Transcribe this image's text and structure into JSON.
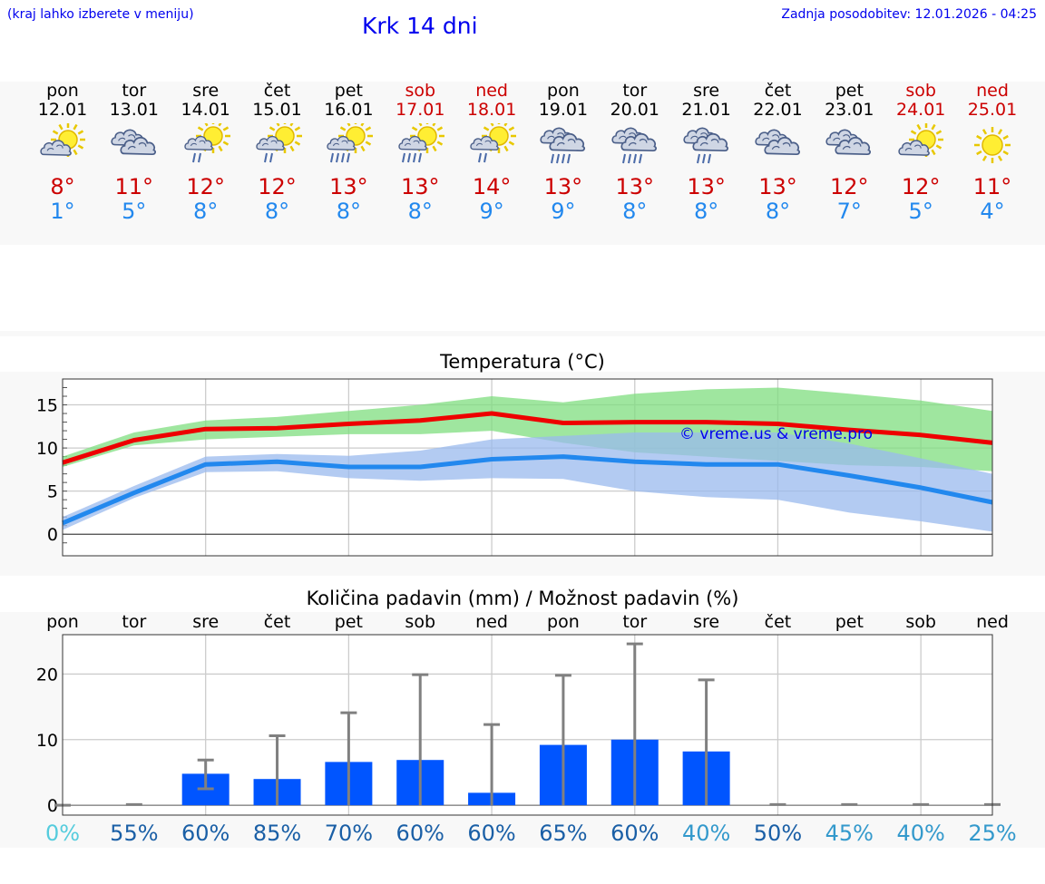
{
  "header": {
    "hint": "(kraj lahko izberete v meniju)",
    "title": "Krk 14 dni",
    "updated": "Zadnja posodobitev: 12.01.2026 - 04:25"
  },
  "days": [
    {
      "name": "pon",
      "date": "12.01",
      "weekend": false,
      "icon": "sun-cloud-icon",
      "max": "8°",
      "min": "1°"
    },
    {
      "name": "tor",
      "date": "13.01",
      "weekend": false,
      "icon": "cloudy-icon",
      "max": "11°",
      "min": "5°"
    },
    {
      "name": "sre",
      "date": "14.01",
      "weekend": false,
      "icon": "sun-cloud-rain-icon",
      "max": "12°",
      "min": "8°"
    },
    {
      "name": "čet",
      "date": "15.01",
      "weekend": false,
      "icon": "sun-cloud-rain-icon",
      "max": "12°",
      "min": "8°"
    },
    {
      "name": "pet",
      "date": "16.01",
      "weekend": false,
      "icon": "sun-cloud-heavy-rain-icon",
      "max": "13°",
      "min": "8°"
    },
    {
      "name": "sob",
      "date": "17.01",
      "weekend": true,
      "icon": "sun-cloud-heavy-rain-icon",
      "max": "13°",
      "min": "8°"
    },
    {
      "name": "ned",
      "date": "18.01",
      "weekend": true,
      "icon": "sun-cloud-rain-icon",
      "max": "14°",
      "min": "9°"
    },
    {
      "name": "pon",
      "date": "19.01",
      "weekend": false,
      "icon": "cloudy-heavy-rain-icon",
      "max": "13°",
      "min": "9°"
    },
    {
      "name": "tor",
      "date": "20.01",
      "weekend": false,
      "icon": "cloudy-heavy-rain-icon",
      "max": "13°",
      "min": "8°"
    },
    {
      "name": "sre",
      "date": "21.01",
      "weekend": false,
      "icon": "cloudy-rain-icon",
      "max": "13°",
      "min": "8°"
    },
    {
      "name": "čet",
      "date": "22.01",
      "weekend": false,
      "icon": "cloudy-icon",
      "max": "13°",
      "min": "8°"
    },
    {
      "name": "pet",
      "date": "23.01",
      "weekend": false,
      "icon": "cloudy-icon",
      "max": "12°",
      "min": "7°"
    },
    {
      "name": "sob",
      "date": "24.01",
      "weekend": true,
      "icon": "sun-cloud-icon",
      "max": "12°",
      "min": "5°"
    },
    {
      "name": "ned",
      "date": "25.01",
      "weekend": true,
      "icon": "sun-icon",
      "max": "11°",
      "min": "4°"
    }
  ],
  "chart_data": [
    {
      "type": "line",
      "title": "Temperatura (°C)",
      "ylim": [
        -2.5,
        18
      ],
      "yticks": [
        0,
        5,
        10,
        15
      ],
      "watermark": "© vreme.us & vreme.pro",
      "x": [
        0,
        1,
        2,
        3,
        4,
        5,
        6,
        7,
        8,
        9,
        10,
        11,
        12,
        13
      ],
      "series": [
        {
          "name": "max",
          "color": "#ee0000",
          "values": [
            8.3,
            10.9,
            12.2,
            12.3,
            12.8,
            13.2,
            14.0,
            12.9,
            13.0,
            13.0,
            12.8,
            12.1,
            11.5,
            10.6
          ],
          "band_low": [
            7.8,
            10.3,
            11.0,
            11.3,
            11.6,
            11.6,
            12.0,
            10.6,
            9.5,
            9.0,
            8.5,
            8.0,
            7.8,
            7.3
          ],
          "band_high": [
            9.0,
            11.8,
            13.2,
            13.6,
            14.3,
            15.0,
            16.0,
            15.3,
            16.3,
            16.8,
            17.0,
            16.3,
            15.5,
            14.3
          ],
          "band_color": "#7fdd7f"
        },
        {
          "name": "min",
          "color": "#2288ee",
          "values": [
            1.3,
            4.8,
            8.1,
            8.4,
            7.8,
            7.8,
            8.7,
            9.0,
            8.4,
            8.1,
            8.1,
            6.8,
            5.4,
            3.7
          ],
          "band_low": [
            0.5,
            4.2,
            7.2,
            7.3,
            6.5,
            6.2,
            6.5,
            6.4,
            5.0,
            4.3,
            4.0,
            2.5,
            1.5,
            0.3
          ],
          "band_high": [
            2.0,
            5.6,
            9.0,
            9.3,
            9.1,
            9.7,
            11.0,
            11.4,
            11.8,
            11.8,
            11.8,
            10.5,
            8.8,
            7.0
          ],
          "band_color": "#99b9ee"
        }
      ]
    },
    {
      "type": "bar",
      "title": "Količina padavin (mm) / Možnost padavin (%)",
      "categories": [
        "pon",
        "tor",
        "sre",
        "čet",
        "pet",
        "sob",
        "ned",
        "pon",
        "tor",
        "sre",
        "čet",
        "pet",
        "sob",
        "ned"
      ],
      "ylim": [
        -1.5,
        26
      ],
      "yticks": [
        0,
        10,
        20
      ],
      "values": [
        0,
        0,
        4.8,
        4.0,
        6.6,
        6.9,
        1.9,
        9.2,
        10.0,
        8.2,
        0,
        0,
        0,
        0
      ],
      "error_low": [
        0,
        0,
        2.5,
        0,
        0,
        0,
        0,
        0,
        0,
        0,
        0,
        0,
        0,
        0
      ],
      "error_high": [
        0,
        0.1,
        6.9,
        10.6,
        14.1,
        19.9,
        12.3,
        19.8,
        24.6,
        19.1,
        0.1,
        0.1,
        0.1,
        0.1
      ],
      "bar_color": "#0055ff",
      "probability": [
        "0%",
        "55%",
        "60%",
        "85%",
        "70%",
        "60%",
        "60%",
        "65%",
        "60%",
        "40%",
        "50%",
        "45%",
        "40%",
        "25%"
      ],
      "probability_colors": [
        "#55ccdd",
        "#1a5fa6",
        "#1a5fa6",
        "#1a5fa6",
        "#1a5fa6",
        "#1a5fa6",
        "#1a5fa6",
        "#1a5fa6",
        "#1a5fa6",
        "#3399cc",
        "#1a5fa6",
        "#3399cc",
        "#3399cc",
        "#3399cc"
      ]
    }
  ]
}
